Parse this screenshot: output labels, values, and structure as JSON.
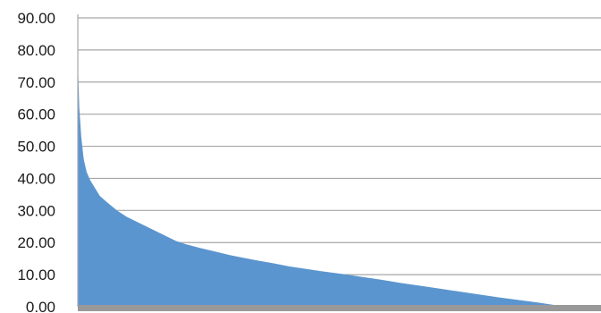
{
  "chart_data": {
    "type": "area",
    "title": "",
    "xlabel": "",
    "ylabel": "",
    "ylim": [
      0,
      90
    ],
    "y_ticks": [
      "0.00",
      "10.00",
      "20.00",
      "30.00",
      "40.00",
      "50.00",
      "60.00",
      "70.00",
      "80.00",
      "90.00"
    ],
    "grid": true,
    "x_range": [
      0,
      100
    ],
    "series": [
      {
        "values": [
          [
            0,
            77
          ],
          [
            0.3,
            62
          ],
          [
            0.7,
            53
          ],
          [
            1.2,
            46
          ],
          [
            1.8,
            42
          ],
          [
            2.5,
            39.5
          ],
          [
            3.5,
            37
          ],
          [
            4.5,
            34.5
          ],
          [
            6,
            32.5
          ],
          [
            8,
            30
          ],
          [
            10,
            28
          ],
          [
            12,
            26.5
          ],
          [
            14,
            25
          ],
          [
            16,
            23.5
          ],
          [
            18,
            22
          ],
          [
            20,
            20.5
          ],
          [
            22,
            19.5
          ],
          [
            25,
            18.3
          ],
          [
            28,
            17.2
          ],
          [
            31,
            16.1
          ],
          [
            34,
            15.2
          ],
          [
            37,
            14.3
          ],
          [
            40,
            13.5
          ],
          [
            43,
            12.6
          ],
          [
            46,
            11.9
          ],
          [
            50,
            11
          ],
          [
            54,
            10.2
          ],
          [
            58,
            9.3
          ],
          [
            62,
            8.4
          ],
          [
            66,
            7.4
          ],
          [
            70,
            6.5
          ],
          [
            74,
            5.6
          ],
          [
            78,
            4.7
          ],
          [
            82,
            3.8
          ],
          [
            86,
            2.9
          ],
          [
            90,
            2.1
          ],
          [
            94,
            1.3
          ],
          [
            97,
            0.6
          ],
          [
            100,
            0
          ]
        ]
      }
    ],
    "colors": {
      "fill": "#5b95cf",
      "grid": "#a6a6a6",
      "floor": "#999999"
    }
  }
}
